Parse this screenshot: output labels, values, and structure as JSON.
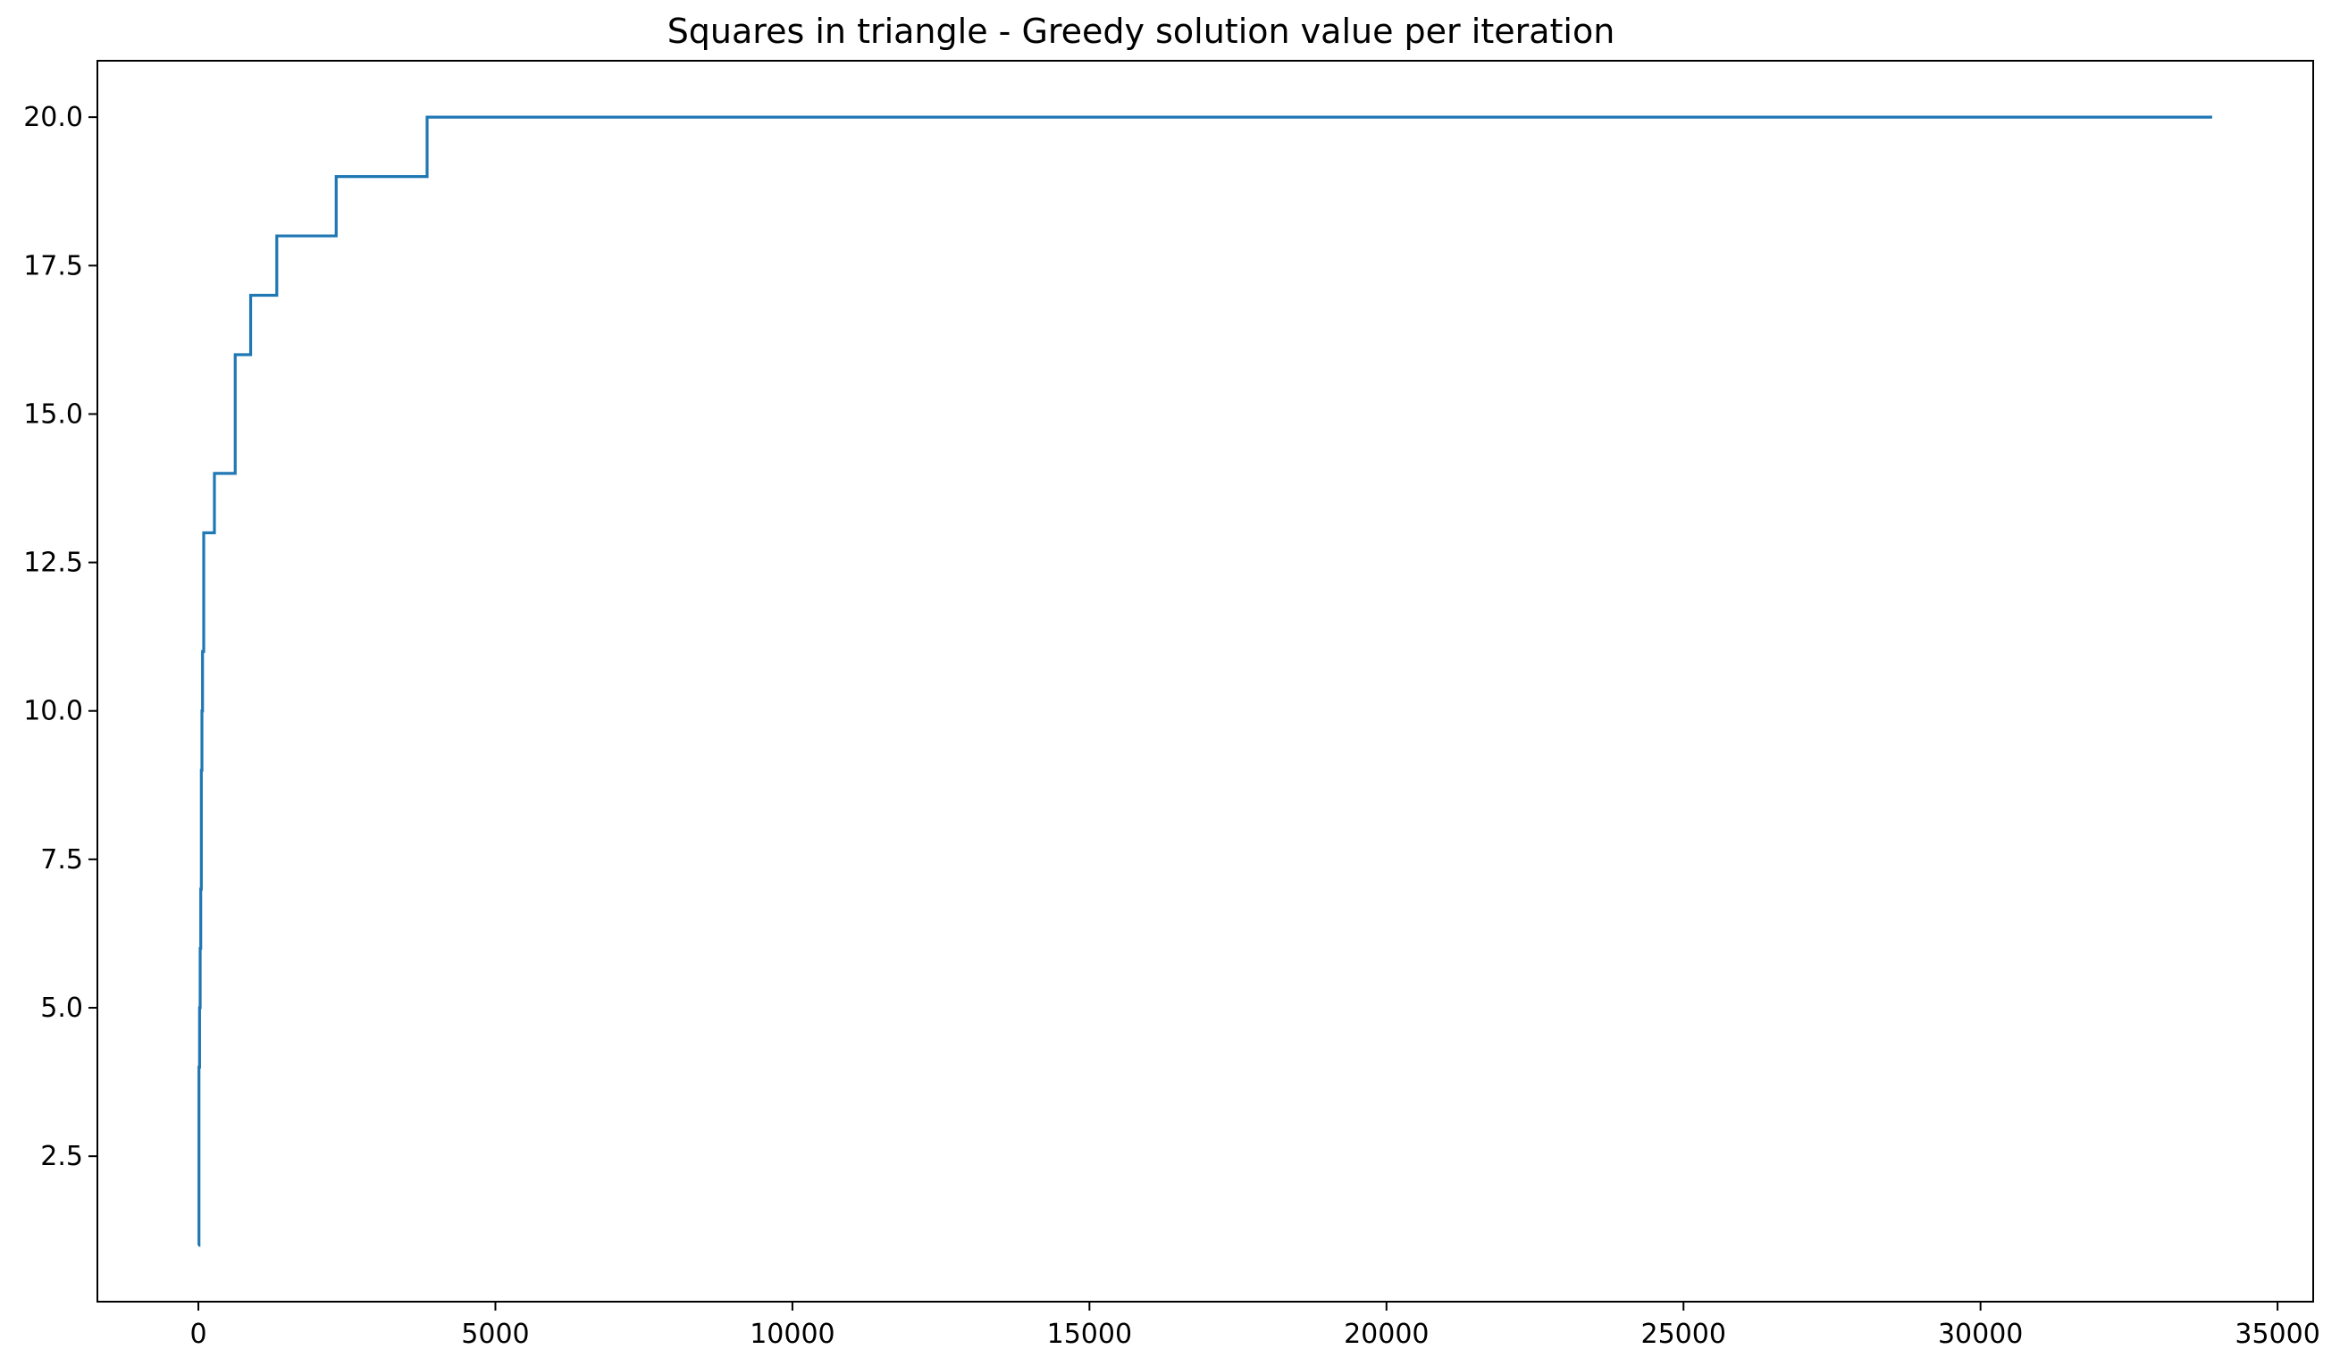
{
  "chart_data": {
    "type": "line",
    "title": "Squares in triangle - Greedy solution value per iteration",
    "xlabel": "",
    "ylabel": "",
    "xlim": [
      -1700,
      35600
    ],
    "ylim": [
      0.05,
      20.95
    ],
    "xticks": [
      0,
      5000,
      10000,
      15000,
      20000,
      25000,
      30000,
      35000
    ],
    "yticks": [
      2.5,
      5.0,
      7.5,
      10.0,
      12.5,
      15.0,
      17.5,
      20.0
    ],
    "ytick_labels": [
      "2.5",
      "5.0",
      "7.5",
      "10.0",
      "12.5",
      "15.0",
      "17.5",
      "20.0"
    ],
    "grid": false,
    "legend": "none",
    "series": [
      {
        "color": "#1f77b4",
        "step": "post",
        "x": [
          0,
          10,
          20,
          30,
          40,
          50,
          60,
          70,
          90,
          270,
          620,
          880,
          1320,
          2320,
          3850,
          33900
        ],
        "y": [
          1,
          4,
          5,
          6,
          7,
          9,
          10,
          11,
          13,
          14,
          16,
          17,
          18,
          19,
          20,
          20
        ]
      }
    ]
  }
}
